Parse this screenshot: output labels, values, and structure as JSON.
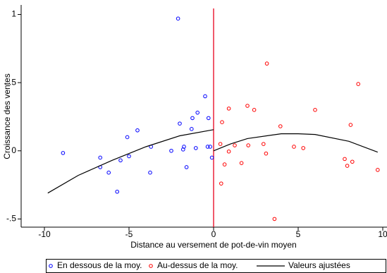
{
  "chart_data": {
    "type": "scatter",
    "x_label": "Distance au versement de pot-de-vin moyen",
    "y_label": "Croissance des ventes",
    "xlim": [
      -11.375,
      10.25
    ],
    "ylim": [
      -0.56,
      1.07
    ],
    "xticks": [
      -10,
      -5,
      0,
      5,
      10
    ],
    "yticks": [
      {
        "value": -0.5,
        "label": "-.5"
      },
      0,
      {
        "value": 0.5,
        "label": ".5"
      },
      1
    ],
    "vline": {
      "x": 0,
      "color": "#e8001c"
    },
    "legend": "bottom",
    "series": [
      {
        "name": "En dessous de la moy.",
        "color": "#0000ff",
        "mode": "markers",
        "x": [
          -8.9,
          -6.7,
          -6.7,
          -6.2,
          -5.7,
          -5.5,
          -5.0,
          -5.1,
          -4.5,
          -3.7,
          -3.75,
          -2.5,
          -2.1,
          -2.0,
          -1.8,
          -1.75,
          -1.6,
          -1.3,
          -1.25,
          -1.05,
          -0.95,
          -0.5,
          -0.3,
          -0.35,
          -0.2,
          -0.1
        ],
        "values": [
          -0.016,
          -0.05,
          -0.12,
          -0.16,
          -0.3,
          -0.07,
          -0.04,
          0.1,
          0.15,
          0.03,
          -0.16,
          0.0,
          0.97,
          0.2,
          0.01,
          0.03,
          -0.12,
          0.16,
          0.24,
          0.02,
          0.28,
          0.4,
          0.24,
          0.03,
          0.03,
          -0.05
        ]
      },
      {
        "name": "Au-dessus de la moy.",
        "color": "#ff0000",
        "mode": "markers",
        "x": [
          0.4,
          0.5,
          0.45,
          0.65,
          0.9,
          0.9,
          1.25,
          1.65,
          2.0,
          2.05,
          2.4,
          2.95,
          3.1,
          3.15,
          3.6,
          3.95,
          4.75,
          5.3,
          6.0,
          7.75,
          7.9,
          8.1,
          8.2,
          8.55,
          9.7
        ],
        "values": [
          0.05,
          0.21,
          -0.24,
          -0.1,
          -0.005,
          0.31,
          0.04,
          -0.09,
          0.33,
          0.04,
          0.3,
          0.05,
          -0.02,
          0.64,
          -0.5,
          0.18,
          0.03,
          0.02,
          0.3,
          -0.06,
          -0.11,
          0.19,
          -0.08,
          0.49,
          -0.14
        ]
      },
      {
        "name": "Valeurs ajustées",
        "color": "#000000",
        "mode": "line",
        "x": [
          -9.8,
          -8,
          -6,
          -4,
          -2,
          0,
          0,
          0,
          1,
          2,
          4,
          5,
          6,
          8,
          9.7
        ],
        "values": [
          -0.31,
          -0.18,
          -0.07,
          0.03,
          0.11,
          0.155,
          null,
          0.0,
          0.05,
          0.09,
          0.125,
          0.125,
          0.12,
          0.07,
          -0.01
        ]
      }
    ]
  }
}
